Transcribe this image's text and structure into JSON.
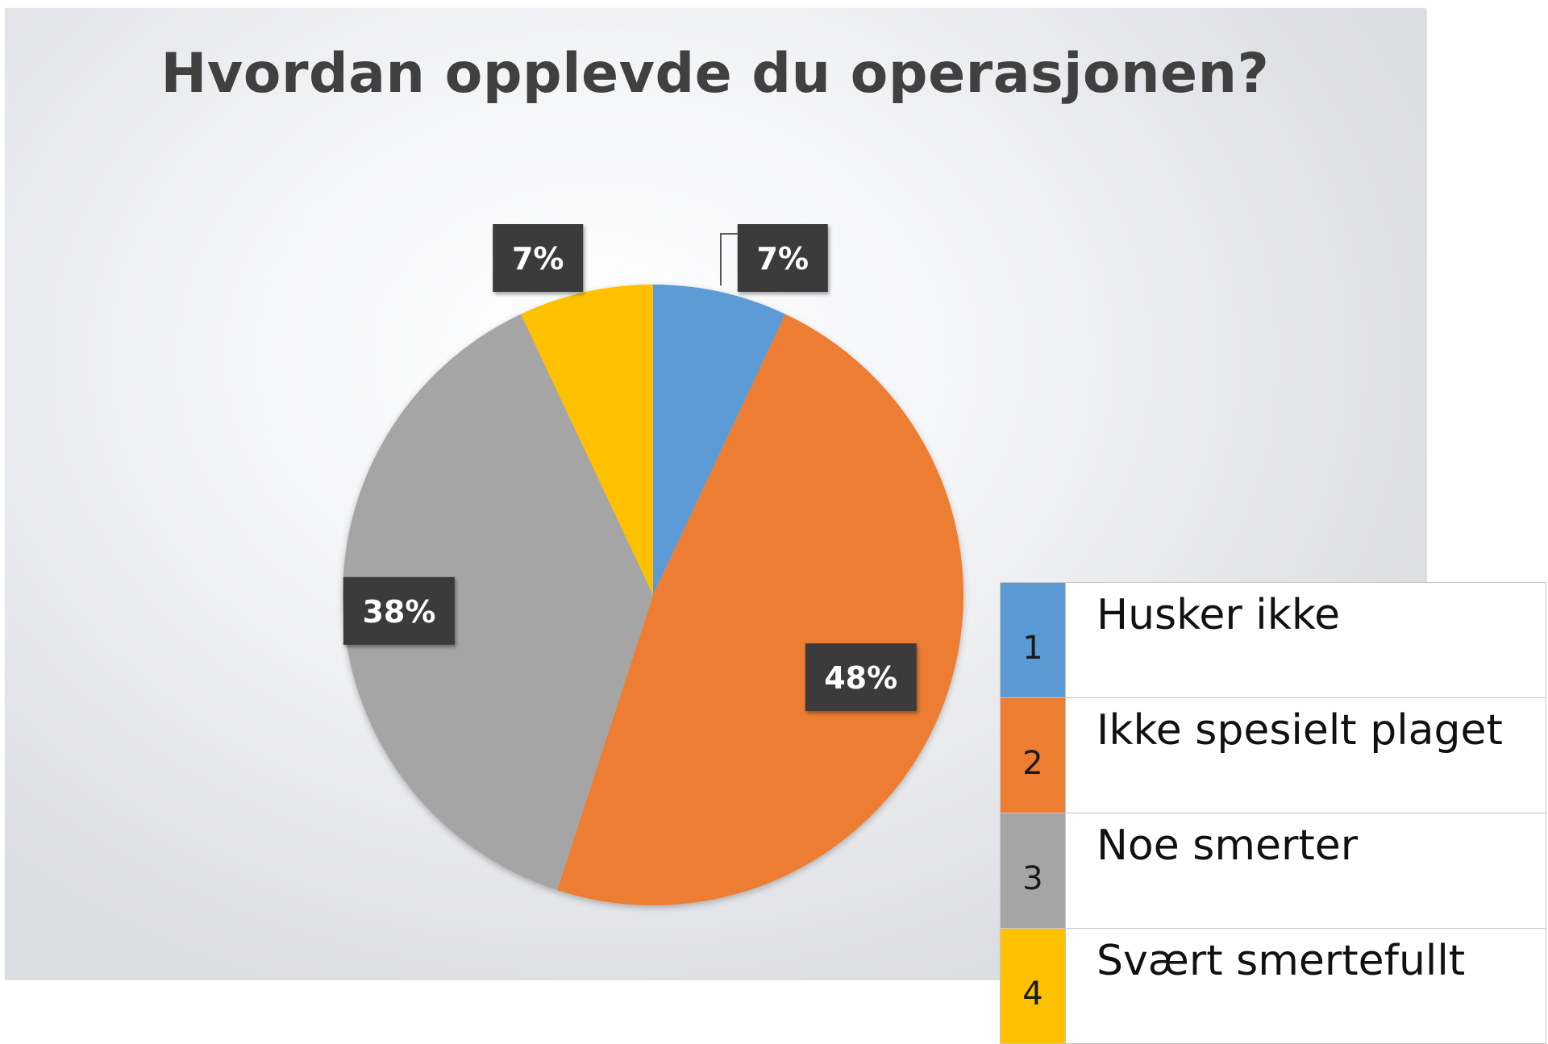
{
  "chart_data": {
    "type": "pie",
    "title": "Hvordan opplevde du operasjonen?",
    "slices": [
      {
        "key": "1",
        "name": "Husker ikke",
        "value": 7,
        "label": "7%",
        "color": "#5b9bd5"
      },
      {
        "key": "2",
        "name": "Ikke spesielt plaget",
        "value": 48,
        "label": "48%",
        "color": "#ed7d31"
      },
      {
        "key": "3",
        "name": "Noe smerter",
        "value": 38,
        "label": "38%",
        "color": "#a5a5a5"
      },
      {
        "key": "4",
        "name": "Svært smertefullt",
        "value": 7,
        "label": "7%",
        "color": "#ffc000"
      }
    ],
    "legend_position": "bottom-right",
    "data_label_style": "dark boxes with white text"
  }
}
